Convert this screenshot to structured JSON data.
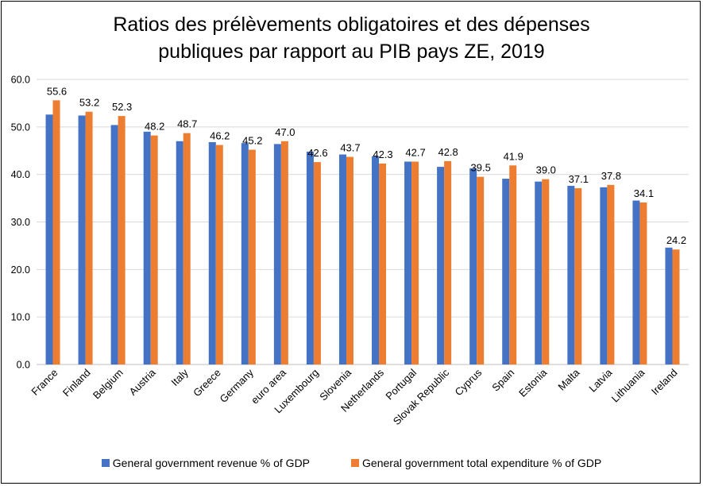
{
  "chart_data": {
    "type": "bar",
    "title_lines": [
      "Ratios des prélèvements obligatoires et des dépenses",
      "publiques par rapport au PIB pays ZE, 2019"
    ],
    "xlabel": "",
    "ylabel": "",
    "ylim": [
      0,
      60
    ],
    "yticks": [
      "0.0",
      "10.0",
      "20.0",
      "30.0",
      "40.0",
      "50.0",
      "60.0"
    ],
    "grid": true,
    "legend_position": "bottom",
    "categories": [
      "France",
      "Finland",
      "Belgium",
      "Austria",
      "Italy",
      "Greece",
      "Germany",
      "euro area",
      "Luxembourg",
      "Slovenia",
      "Netherlands",
      "Portugal",
      "Slovak Republic",
      "Cyprus",
      "Spain",
      "Estonia",
      "Malta",
      "Latvia",
      "Lithuania",
      "Ireland"
    ],
    "series": [
      {
        "name": "General government revenue % of GDP",
        "color": "#4472C4",
        "values": [
          52.6,
          52.4,
          50.4,
          49.0,
          47.0,
          46.8,
          46.6,
          46.4,
          44.8,
          44.2,
          43.8,
          42.7,
          41.6,
          41.3,
          39.1,
          38.5,
          37.6,
          37.3,
          34.5,
          24.6
        ]
      },
      {
        "name": "General government total expenditure % of GDP",
        "color": "#ED7D31",
        "values": [
          55.6,
          53.2,
          52.3,
          48.2,
          48.7,
          46.2,
          45.2,
          47.0,
          42.6,
          43.7,
          42.3,
          42.7,
          42.8,
          39.5,
          41.9,
          39.0,
          37.1,
          37.8,
          34.1,
          24.2
        ],
        "data_labels": [
          "55.6",
          "53.2",
          "52.3",
          "48.2",
          "48.7",
          "46.2",
          "45.2",
          "47.0",
          "42.6",
          "43.7",
          "42.3",
          "42.7",
          "42.8",
          "39.5",
          "41.9",
          "39.0",
          "37.1",
          "37.8",
          "34.1",
          "24.2"
        ]
      }
    ]
  }
}
